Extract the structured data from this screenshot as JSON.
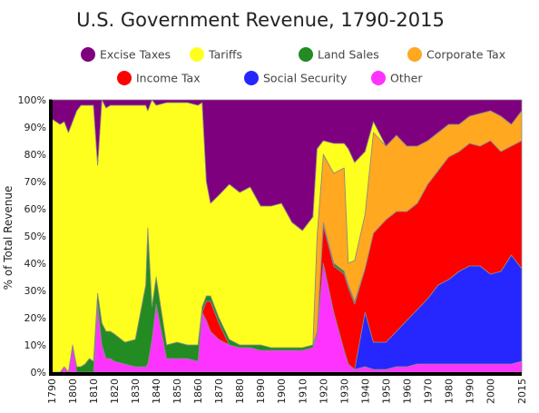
{
  "chart_data": {
    "type": "area",
    "stacked": true,
    "normalized": true,
    "title": "U.S. Government Revenue, 1790-2015",
    "ylabel": "% of Total Revenue",
    "xlabel": "",
    "xlim": [
      1790,
      2015
    ],
    "ylim": [
      0,
      100
    ],
    "x_ticks": [
      "1790",
      "1800",
      "1810",
      "1820",
      "1830",
      "1840",
      "1850",
      "1860",
      "1870",
      "1880",
      "1890",
      "1900",
      "1910",
      "1920",
      "1930",
      "1940",
      "1950",
      "1960",
      "1970",
      "1980",
      "1990",
      "2000",
      "2015"
    ],
    "y_ticks": [
      "0%",
      "10%",
      "20%",
      "30%",
      "40%",
      "50%",
      "60%",
      "70%",
      "80%",
      "90%",
      "100%"
    ],
    "grid": false,
    "legend_position": "top",
    "x": [
      1790,
      1792,
      1794,
      1796,
      1798,
      1800,
      1802,
      1804,
      1806,
      1808,
      1810,
      1812,
      1814,
      1816,
      1818,
      1820,
      1825,
      1830,
      1835,
      1836,
      1838,
      1840,
      1845,
      1850,
      1855,
      1860,
      1862,
      1864,
      1866,
      1870,
      1875,
      1880,
      1885,
      1890,
      1895,
      1900,
      1905,
      1910,
      1915,
      1917,
      1920,
      1925,
      1930,
      1932,
      1935,
      1940,
      1944,
      1950,
      1955,
      1960,
      1965,
      1970,
      1975,
      1980,
      1985,
      1990,
      1995,
      2000,
      2005,
      2010,
      2015
    ],
    "series": [
      {
        "name": "Other",
        "color": "#ff33ff",
        "values": [
          0,
          0,
          0,
          2,
          0,
          10,
          0,
          0,
          0,
          0,
          0,
          25,
          10,
          5,
          5,
          4,
          3,
          2,
          2,
          3,
          12,
          25,
          5,
          5,
          5,
          4,
          22,
          19,
          15,
          12,
          10,
          9,
          9,
          8,
          8,
          8,
          8,
          8,
          9,
          14,
          40,
          22,
          8,
          3,
          1,
          2,
          1,
          1,
          2,
          2,
          3,
          3,
          3,
          3,
          3,
          3,
          3,
          3,
          3,
          3,
          4
        ]
      },
      {
        "name": "Social Security",
        "color": "#2626ff",
        "values": [
          0,
          0,
          0,
          0,
          0,
          0,
          0,
          0,
          0,
          0,
          0,
          0,
          0,
          0,
          0,
          0,
          0,
          0,
          0,
          0,
          0,
          0,
          0,
          0,
          0,
          0,
          0,
          0,
          0,
          0,
          0,
          0,
          0,
          0,
          0,
          0,
          0,
          0,
          0,
          0,
          0,
          0,
          0,
          0,
          0,
          20,
          10,
          10,
          13,
          17,
          20,
          24,
          29,
          31,
          34,
          36,
          36,
          33,
          34,
          40,
          34
        ]
      },
      {
        "name": "Income Tax",
        "color": "#ff0000",
        "values": [
          0,
          0,
          0,
          0,
          0,
          0,
          0,
          0,
          0,
          0,
          0,
          0,
          0,
          0,
          0,
          0,
          0,
          0,
          0,
          0,
          0,
          0,
          0,
          0,
          0,
          0,
          0,
          7,
          11,
          6,
          0,
          0,
          0,
          0,
          0,
          0,
          0,
          0,
          0,
          0,
          14,
          17,
          28,
          28,
          24,
          16,
          40,
          45,
          44,
          40,
          39,
          42,
          42,
          45,
          44,
          45,
          44,
          49,
          44,
          40,
          47
        ]
      },
      {
        "name": "Land Sales",
        "color": "#228b22",
        "values": [
          0,
          0,
          0,
          0,
          0,
          0,
          2,
          2,
          3,
          5,
          4,
          4,
          8,
          10,
          10,
          10,
          8,
          10,
          30,
          50,
          12,
          10,
          5,
          6,
          5,
          6,
          2,
          2,
          2,
          2,
          2,
          1,
          1,
          2,
          1,
          1,
          1,
          1,
          1,
          1,
          1,
          1,
          1,
          1,
          1,
          0,
          0,
          0,
          0,
          0,
          0,
          0,
          0,
          0,
          0,
          0,
          0,
          0,
          0,
          0,
          0
        ]
      },
      {
        "name": "Corporate Tax",
        "color": "#ffa820",
        "values": [
          0,
          0,
          0,
          0,
          0,
          0,
          0,
          0,
          0,
          0,
          0,
          0,
          0,
          0,
          0,
          0,
          0,
          0,
          0,
          0,
          0,
          0,
          0,
          0,
          0,
          0,
          0,
          0,
          0,
          0,
          0,
          0,
          0,
          0,
          0,
          0,
          0,
          0,
          0,
          35,
          25,
          33,
          38,
          8,
          15,
          20,
          37,
          27,
          28,
          24,
          21,
          16,
          14,
          12,
          10,
          10,
          12,
          11,
          13,
          8,
          11
        ]
      },
      {
        "name": "Tariffs",
        "color": "#ffff1f",
        "values": [
          93,
          92,
          91,
          90,
          88,
          82,
          94,
          96,
          95,
          93,
          94,
          47,
          82,
          82,
          83,
          84,
          87,
          86,
          66,
          43,
          84,
          63,
          89,
          88,
          89,
          88,
          75,
          42,
          34,
          45,
          57,
          56,
          58,
          51,
          52,
          53,
          46,
          43,
          47,
          32,
          5,
          11,
          9,
          42,
          36,
          23,
          4,
          0,
          0,
          0,
          0,
          0,
          0,
          0,
          0,
          0,
          0,
          0,
          0,
          0,
          0
        ]
      },
      {
        "name": "Excise Taxes",
        "color": "#7f007f",
        "values": [
          7,
          8,
          9,
          8,
          12,
          8,
          4,
          2,
          2,
          2,
          2,
          24,
          0,
          3,
          2,
          2,
          2,
          2,
          2,
          4,
          2,
          2,
          1,
          1,
          1,
          2,
          1,
          30,
          38,
          35,
          31,
          34,
          32,
          39,
          39,
          38,
          45,
          48,
          43,
          18,
          15,
          16,
          16,
          18,
          23,
          39,
          8,
          17,
          13,
          17,
          17,
          15,
          12,
          9,
          9,
          6,
          5,
          4,
          6,
          9,
          4
        ]
      }
    ]
  },
  "legend": {
    "items": [
      {
        "label": "Excise Taxes",
        "color": "#7f007f"
      },
      {
        "label": "Tariffs",
        "color": "#ffff1f"
      },
      {
        "label": "Land Sales",
        "color": "#228b22"
      },
      {
        "label": "Corporate Tax",
        "color": "#ffa820"
      },
      {
        "label": "Income Tax",
        "color": "#ff0000"
      },
      {
        "label": "Social Security",
        "color": "#2626ff"
      },
      {
        "label": "Other",
        "color": "#ff33ff"
      }
    ]
  }
}
